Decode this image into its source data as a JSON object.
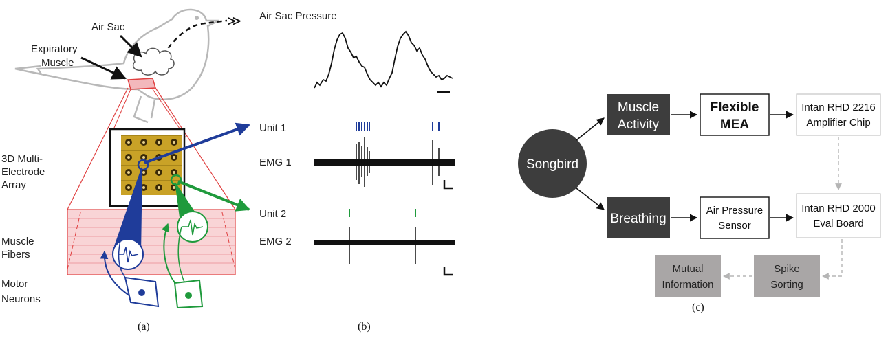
{
  "panel_a": {
    "labels": {
      "air_sac": "Air Sac",
      "expiratory": "Expiratory",
      "muscle": "Muscle",
      "mea_line1": "3D Multi-",
      "mea_line2": "Electrode",
      "mea_line3": "Array",
      "fibers_line1": "Muscle",
      "fibers_line2": "Fibers",
      "motor_line1": "Motor",
      "motor_line2": "Neurons"
    },
    "caption": "(a)",
    "colors": {
      "unit1": "#1f3c9a",
      "unit2": "#1f9a3c",
      "zoom": "#e04040",
      "fiber_fill": "#f7c9cc"
    }
  },
  "panel_b": {
    "labels": {
      "pressure": "Air Sac Pressure",
      "unit1": "Unit 1",
      "emg1": "EMG 1",
      "unit2": "Unit 2",
      "emg2": "EMG 2"
    },
    "caption": "(b)"
  },
  "panel_c": {
    "songbird": "Songbird",
    "muscle_activity_1": "Muscle",
    "muscle_activity_2": "Activity",
    "breathing": "Breathing",
    "mea_1": "Flexible",
    "mea_2": "MEA",
    "sensor_1": "Air Pressure",
    "sensor_2": "Sensor",
    "chip_1": "Intan RHD 2216",
    "chip_2": "Amplifier Chip",
    "eval_1": "Intan RHD 2000",
    "eval_2": "Eval Board",
    "spike_1": "Spike",
    "spike_2": "Sorting",
    "mutual_1": "Mutual",
    "mutual_2": "Information",
    "caption": "(c)",
    "colors": {
      "dark": "#3d3d3d",
      "gray": "#a9a6a6",
      "dashed": "#b5b5b5"
    }
  }
}
